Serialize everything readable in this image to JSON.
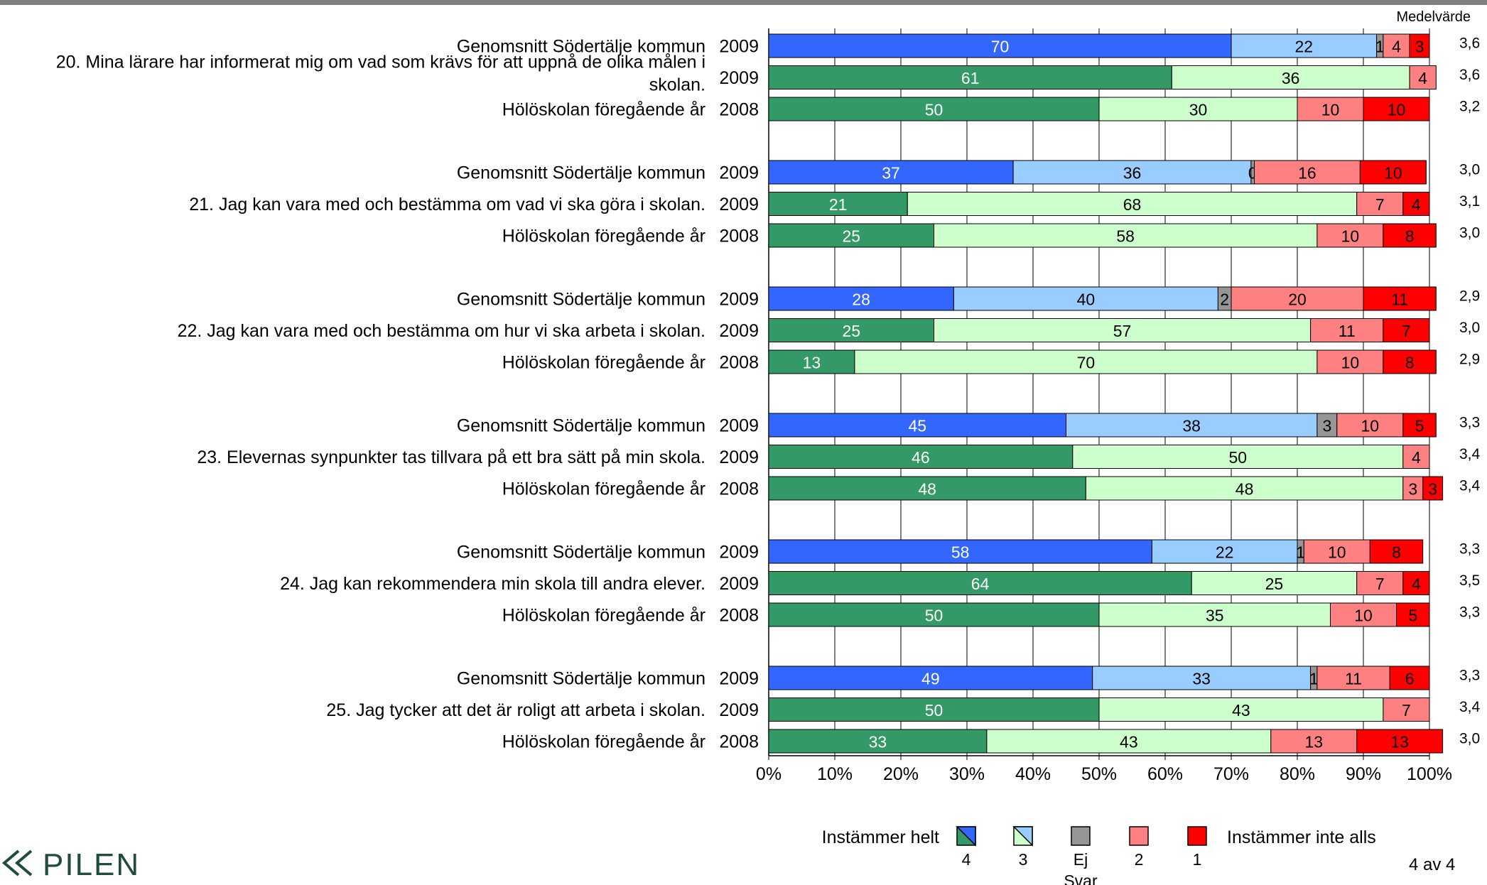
{
  "chart_data": {
    "type": "bar",
    "stacked": true,
    "orientation": "horizontal",
    "xlim": [
      0,
      100
    ],
    "x_ticks": [
      "0%",
      "10%",
      "20%",
      "30%",
      "40%",
      "50%",
      "60%",
      "70%",
      "80%",
      "90%",
      "100%"
    ],
    "mean_header": "Medelvärde",
    "series": [
      {
        "key": "4",
        "color": "#3366ff",
        "alt_color": "#339966"
      },
      {
        "key": "3",
        "color": "#99ccff",
        "alt_color": "#ccffcc"
      },
      {
        "key": "ej",
        "color": "#969696"
      },
      {
        "key": "2",
        "color": "#ff8080"
      },
      {
        "key": "1",
        "color": "#ff0000"
      }
    ],
    "groups": [
      {
        "question": [
          "20.  Mina lärare har informerat mig om vad som krävs för att uppnå de olika målen i",
          "skolan."
        ],
        "rows": [
          {
            "label": "Genomsnitt Södertälje kommun",
            "year": "2009",
            "kind": "kommun",
            "values": [
              70,
              22,
              1,
              4,
              3
            ],
            "labels": [
              "70",
              "22",
              "1",
              "4",
              "3"
            ],
            "mean": "3,6"
          },
          {
            "label": "",
            "year": "2009",
            "kind": "school",
            "values": [
              61,
              36,
              0,
              4,
              0
            ],
            "labels": [
              "61",
              "36",
              "",
              "4",
              ""
            ],
            "mean": "3,6"
          },
          {
            "label": "Hölöskolan föregående år",
            "year": "2008",
            "kind": "school",
            "values": [
              50,
              30,
              0,
              10,
              10
            ],
            "labels": [
              "50",
              "30",
              "",
              "10",
              "10"
            ],
            "mean": "3,2"
          }
        ]
      },
      {
        "question": [
          "21.  Jag kan vara med och bestämma om vad vi ska göra i skolan."
        ],
        "rows": [
          {
            "label": "Genomsnitt Södertälje kommun",
            "year": "2009",
            "kind": "kommun",
            "values": [
              37,
              36,
              0.5,
              16,
              10
            ],
            "labels": [
              "37",
              "36",
              "0",
              "16",
              "10"
            ],
            "mean": "3,0"
          },
          {
            "label": "",
            "year": "2009",
            "kind": "school",
            "values": [
              21,
              68,
              0,
              7,
              4
            ],
            "labels": [
              "21",
              "68",
              "",
              "7",
              "4"
            ],
            "mean": "3,1"
          },
          {
            "label": "Hölöskolan föregående år",
            "year": "2008",
            "kind": "school",
            "values": [
              25,
              58,
              0,
              10,
              8
            ],
            "labels": [
              "25",
              "58",
              "",
              "10",
              "8"
            ],
            "mean": "3,0"
          }
        ]
      },
      {
        "question": [
          "22.  Jag kan vara med och bestämma om hur vi ska arbeta i skolan."
        ],
        "rows": [
          {
            "label": "Genomsnitt Södertälje kommun",
            "year": "2009",
            "kind": "kommun",
            "values": [
              28,
              40,
              2,
              20,
              11
            ],
            "labels": [
              "28",
              "40",
              "2",
              "20",
              "11"
            ],
            "mean": "2,9"
          },
          {
            "label": "",
            "year": "2009",
            "kind": "school",
            "values": [
              25,
              57,
              0,
              11,
              7
            ],
            "labels": [
              "25",
              "57",
              "",
              "11",
              "7"
            ],
            "mean": "3,0"
          },
          {
            "label": "Hölöskolan föregående år",
            "year": "2008",
            "kind": "school",
            "values": [
              13,
              70,
              0,
              10,
              8
            ],
            "labels": [
              "13",
              "70",
              "",
              "10",
              "8"
            ],
            "mean": "2,9"
          }
        ]
      },
      {
        "question": [
          "23.  Elevernas synpunkter tas tillvara på ett bra sätt på min skola."
        ],
        "rows": [
          {
            "label": "Genomsnitt Södertälje kommun",
            "year": "2009",
            "kind": "kommun",
            "values": [
              45,
              38,
              3,
              10,
              5
            ],
            "labels": [
              "45",
              "38",
              "3",
              "10",
              "5"
            ],
            "mean": "3,3"
          },
          {
            "label": "",
            "year": "2009",
            "kind": "school",
            "values": [
              46,
              50,
              0,
              4,
              0
            ],
            "labels": [
              "46",
              "50",
              "",
              "4",
              ""
            ],
            "mean": "3,4"
          },
          {
            "label": "Hölöskolan föregående år",
            "year": "2008",
            "kind": "school",
            "values": [
              48,
              48,
              0,
              3,
              3
            ],
            "labels": [
              "48",
              "48",
              "",
              "3",
              "3"
            ],
            "mean": "3,4"
          }
        ]
      },
      {
        "question": [
          "24.  Jag kan rekommendera min skola till andra elever."
        ],
        "rows": [
          {
            "label": "Genomsnitt Södertälje kommun",
            "year": "2009",
            "kind": "kommun",
            "values": [
              58,
              22,
              1,
              10,
              8
            ],
            "labels": [
              "58",
              "22",
              "1",
              "10",
              "8"
            ],
            "mean": "3,3"
          },
          {
            "label": "",
            "year": "2009",
            "kind": "school",
            "values": [
              64,
              25,
              0,
              7,
              4
            ],
            "labels": [
              "64",
              "25",
              "",
              "7",
              "4"
            ],
            "mean": "3,5"
          },
          {
            "label": "Hölöskolan föregående år",
            "year": "2008",
            "kind": "school",
            "values": [
              50,
              35,
              0,
              10,
              5
            ],
            "labels": [
              "50",
              "35",
              "",
              "10",
              "5"
            ],
            "mean": "3,3"
          }
        ]
      },
      {
        "question": [
          "25.  Jag tycker att det är roligt att arbeta i skolan."
        ],
        "rows": [
          {
            "label": "Genomsnitt Södertälje kommun",
            "year": "2009",
            "kind": "kommun",
            "values": [
              49,
              33,
              1,
              11,
              6
            ],
            "labels": [
              "49",
              "33",
              "1",
              "11",
              "6"
            ],
            "mean": "3,3"
          },
          {
            "label": "",
            "year": "2009",
            "kind": "school",
            "values": [
              50,
              43,
              0,
              7,
              0
            ],
            "labels": [
              "50",
              "43",
              "",
              "7",
              ""
            ],
            "mean": "3,4"
          },
          {
            "label": "Hölöskolan föregående år",
            "year": "2008",
            "kind": "school",
            "values": [
              33,
              43,
              0,
              13,
              13
            ],
            "labels": [
              "33",
              "43",
              "",
              "13",
              "13"
            ],
            "mean": "3,0"
          }
        ]
      }
    ],
    "legend": {
      "left_text": "Instämmer helt",
      "right_text": "Instämmer inte alls",
      "items": [
        {
          "label": "4",
          "fill": "#339966",
          "diag_fill": "#3366ff"
        },
        {
          "label": "3",
          "fill": "#ccffcc",
          "diag_fill": "#99ccff"
        },
        {
          "label": "Ej\nSvar",
          "fill": "#969696"
        },
        {
          "label": "2",
          "fill": "#ff8080"
        },
        {
          "label": "1",
          "fill": "#ff0000"
        }
      ]
    }
  },
  "footer": {
    "logo_text": "PILEN",
    "page": "4 av 4"
  }
}
